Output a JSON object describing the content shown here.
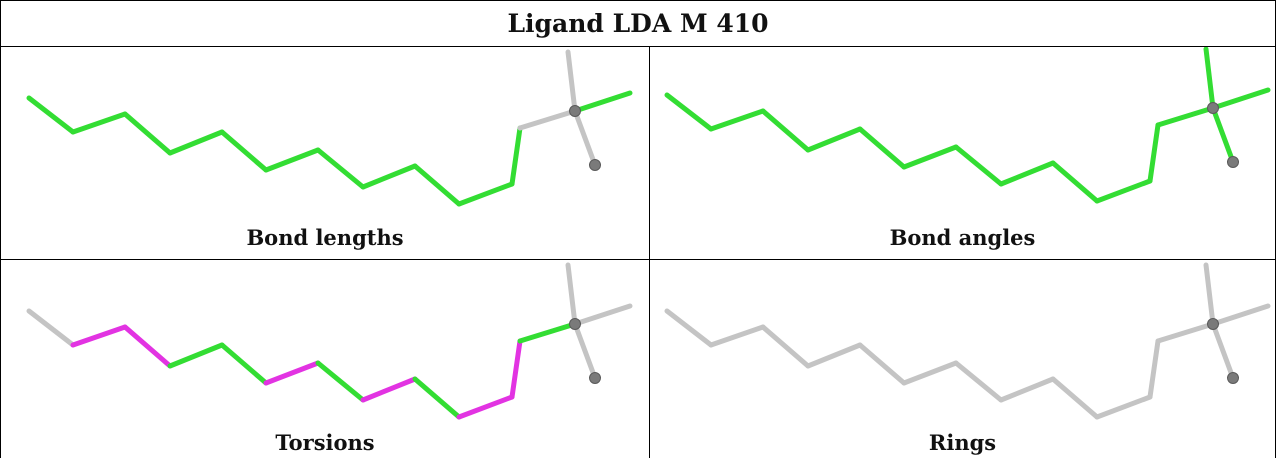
{
  "title": "Ligand LDA M 410",
  "colors": {
    "ok": "#33dd33",
    "outlier": "#e233e2",
    "neutral": "#c4c4c4",
    "atom": "#7a7a7a"
  },
  "panels": [
    {
      "caption": "Bond lengths",
      "colors": [
        "ok",
        "ok",
        "ok",
        "ok",
        "ok",
        "ok",
        "ok",
        "ok",
        "ok",
        "ok",
        "ok",
        "neutral",
        "neutral",
        "ok",
        "neutral",
        "neutral"
      ]
    },
    {
      "caption": "Bond angles",
      "colors": [
        "ok",
        "ok",
        "ok",
        "ok",
        "ok",
        "ok",
        "ok",
        "ok",
        "ok",
        "ok",
        "ok",
        "ok",
        "ok",
        "ok",
        "ok",
        "ok"
      ]
    },
    {
      "caption": "Torsions",
      "colors": [
        "neutral",
        "outlier",
        "outlier",
        "ok",
        "ok",
        "outlier",
        "ok",
        "outlier",
        "ok",
        "outlier",
        "outlier",
        "ok",
        "neutral",
        "neutral",
        "neutral",
        "neutral"
      ]
    },
    {
      "caption": "Rings",
      "colors": [
        "neutral",
        "neutral",
        "neutral",
        "neutral",
        "neutral",
        "neutral",
        "neutral",
        "neutral",
        "neutral",
        "neutral",
        "neutral",
        "neutral",
        "neutral",
        "neutral",
        "neutral",
        "neutral"
      ]
    }
  ]
}
